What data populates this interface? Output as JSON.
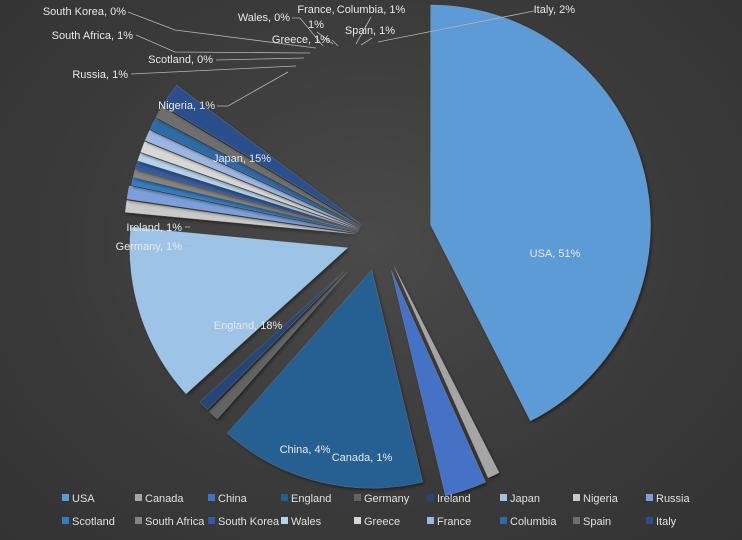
{
  "chart_data": {
    "type": "pie",
    "title": "",
    "series": [
      {
        "name": "USA",
        "value": 51,
        "label": "USA, 51%",
        "color": "#5b9bd5"
      },
      {
        "name": "Canada",
        "value": 1,
        "label": "Canada, 1%",
        "color": "#a5a5a5"
      },
      {
        "name": "China",
        "value": 4,
        "label": "China, 4%",
        "color": "#4472c4"
      },
      {
        "name": "England",
        "value": 18,
        "label": "England, 18%",
        "color": "#255e91"
      },
      {
        "name": "Germany",
        "value": 1,
        "label": "Germany, 1%",
        "color": "#636363"
      },
      {
        "name": "Ireland",
        "value": 1,
        "label": "Ireland, 1%",
        "color": "#264478"
      },
      {
        "name": "Japan",
        "value": 15,
        "label": "Japan, 15%",
        "color": "#9dc3e6"
      },
      {
        "name": "Nigeria",
        "value": 1,
        "label": "Nigeria, 1%",
        "color": "#c9c9c9"
      },
      {
        "name": "Russia",
        "value": 1,
        "label": "Russia, 1%",
        "color": "#7c9fdc"
      },
      {
        "name": "Scotland",
        "value": 0,
        "label": "Scotland, 0%",
        "color": "#327dc2"
      },
      {
        "name": "South Africa",
        "value": 1,
        "label": "South Africa, 1%",
        "color": "#848484"
      },
      {
        "name": "South Korea",
        "value": 0,
        "label": "South Korea, 0%",
        "color": "#335aa1"
      },
      {
        "name": "Wales",
        "value": 0,
        "label": "Wales, 0%",
        "color": "#b4d2ec"
      },
      {
        "name": "Greece",
        "value": 1,
        "label": "Greece, 1%",
        "color": "#d7d7d7"
      },
      {
        "name": "France",
        "value": 1,
        "label": "1%",
        "color": "#9cb6e4"
      },
      {
        "name": "Columbia",
        "value": 1,
        "label": "Columbia, 1%",
        "color": "#2d6aa6"
      },
      {
        "name": "Spain",
        "value": 1,
        "label": "Spain, 1%",
        "color": "#6e6e6e"
      },
      {
        "name": "Italy",
        "value": 2,
        "label": "Italy, 2%",
        "color": "#2b4f8c"
      }
    ],
    "extra_labels": [
      "France,"
    ],
    "legend": {
      "position": "bottom"
    }
  }
}
